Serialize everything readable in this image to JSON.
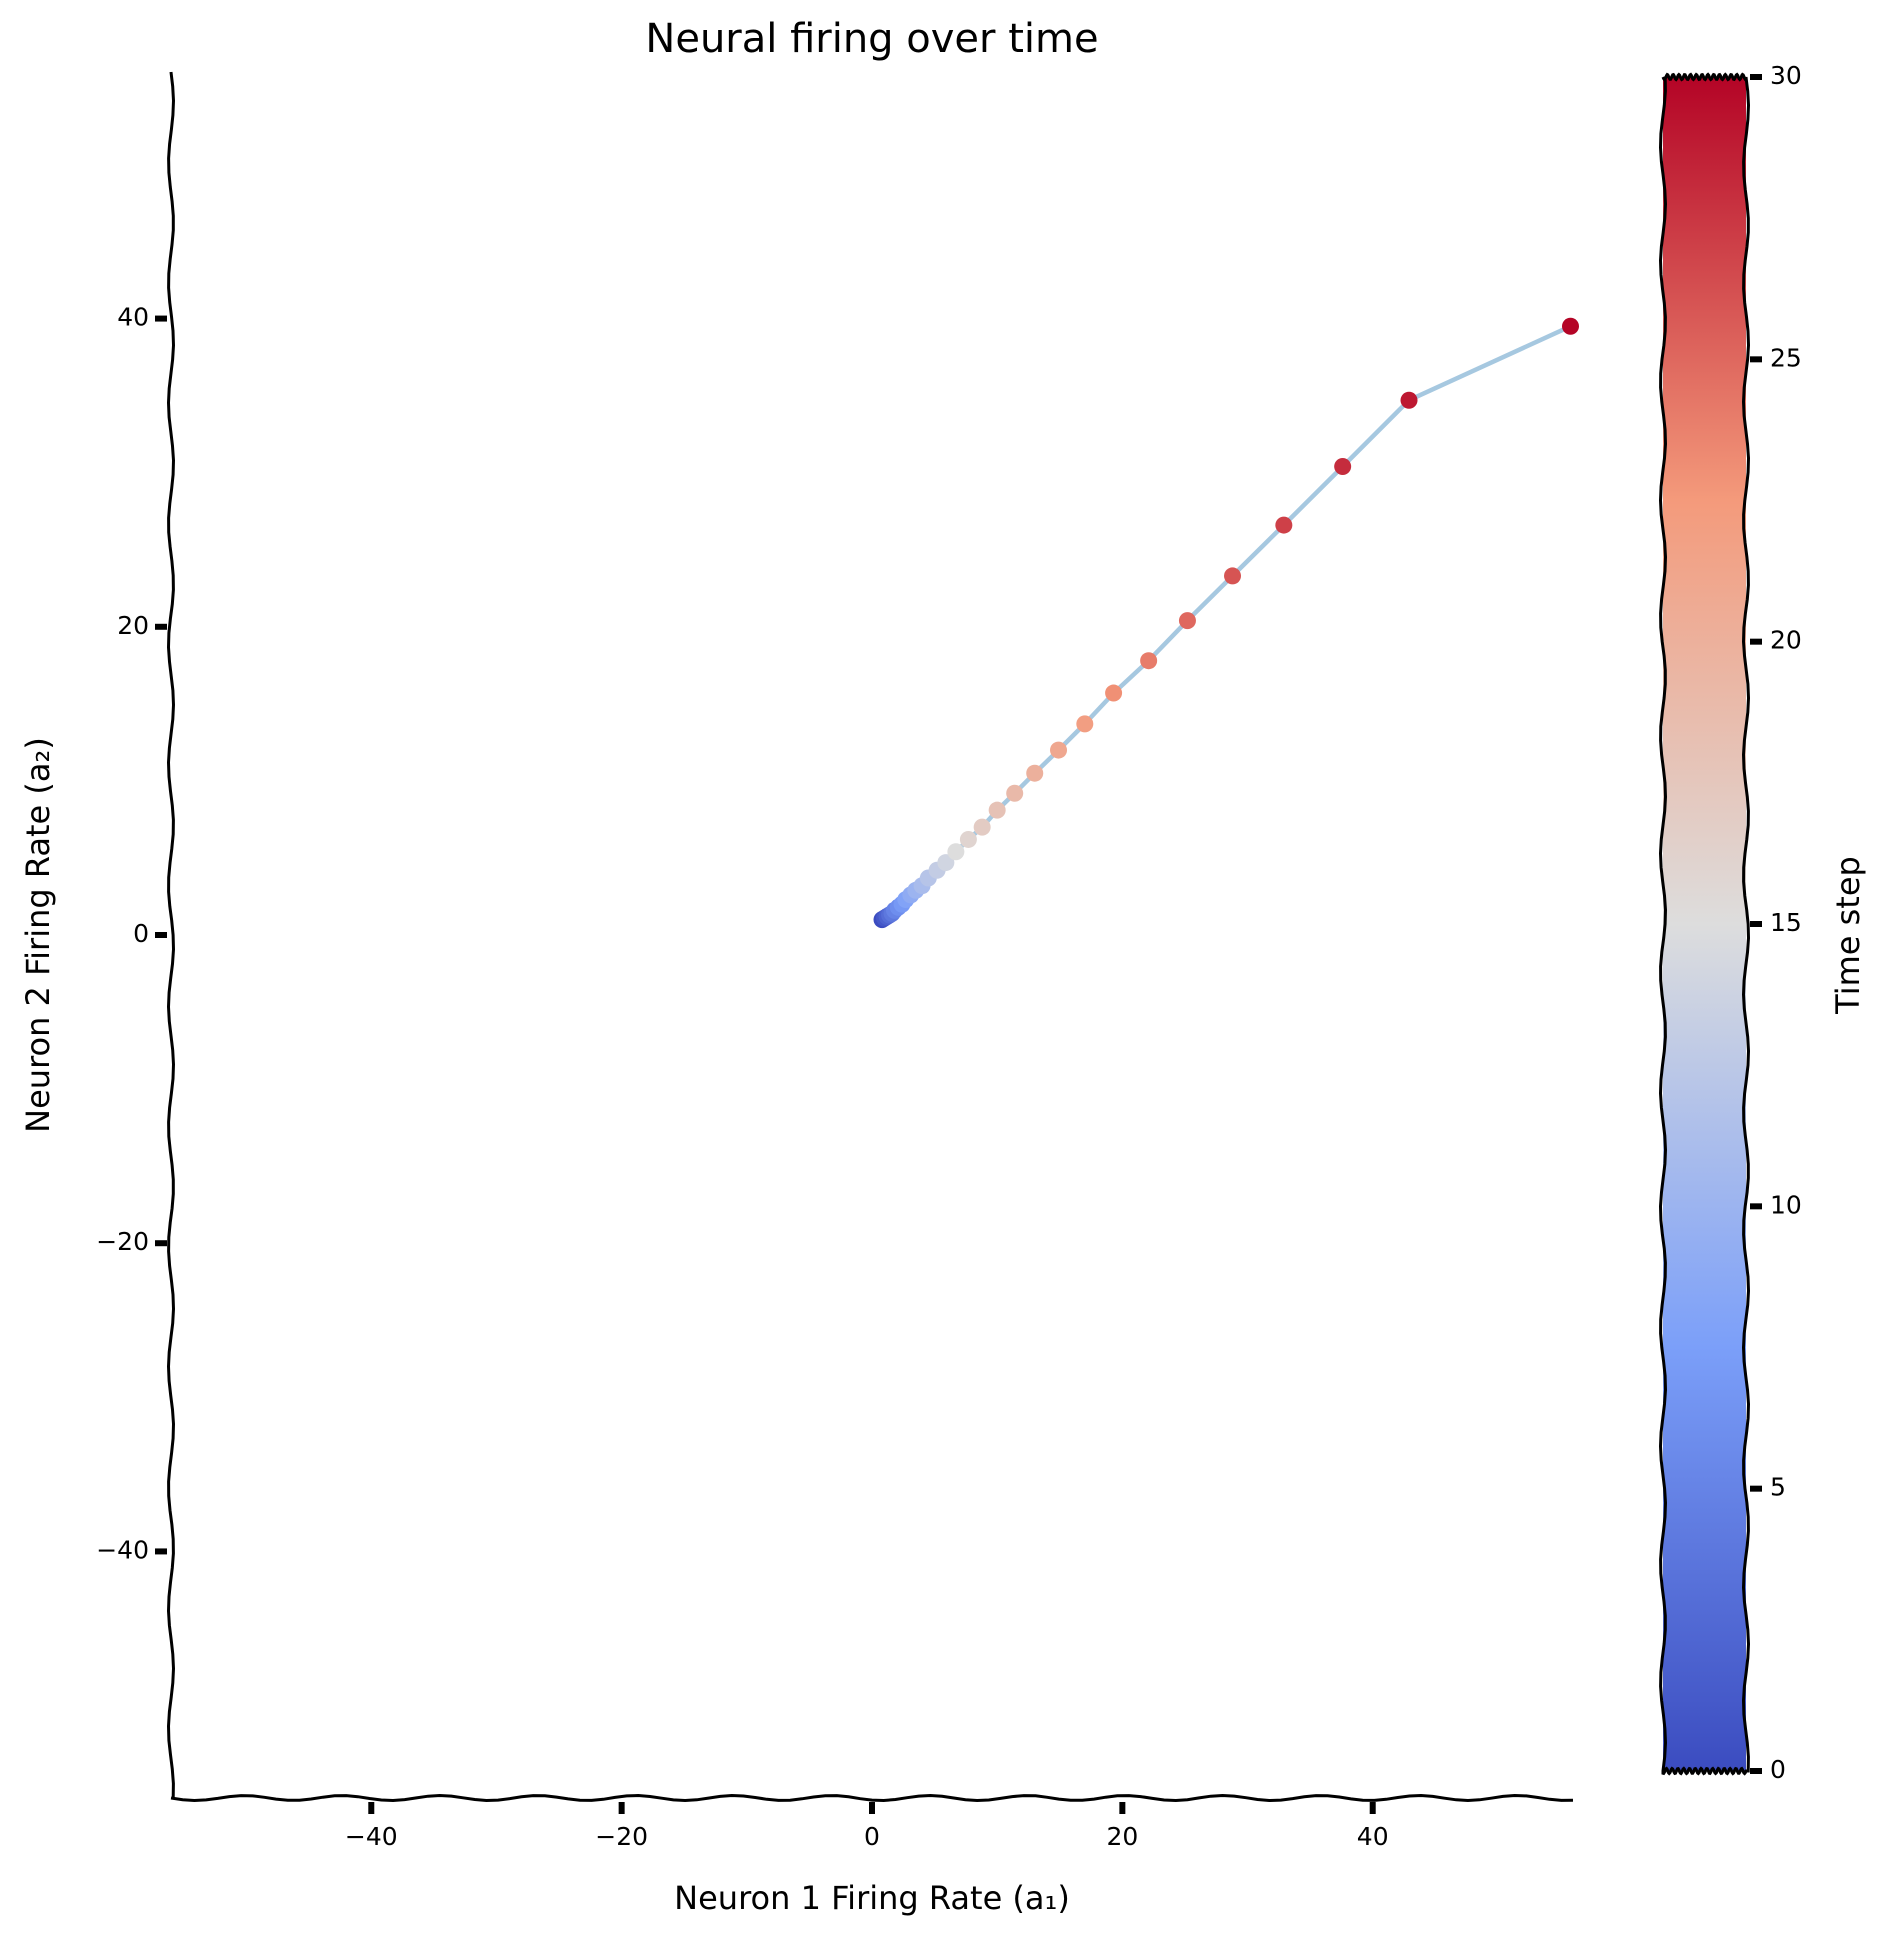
{
  "chart_data": {
    "type": "scatter",
    "title": "Neural firing over time",
    "xlabel": "Neuron 1 Firing Rate (a₁)",
    "ylabel": "Neuron 2 Firing Rate (a₂)",
    "x": [
      0.8,
      1.0,
      1.2,
      1.4,
      1.6,
      1.8,
      2.1,
      2.4,
      2.7,
      3.1,
      3.5,
      4.0,
      4.5,
      5.2,
      5.9,
      6.7,
      7.7,
      8.8,
      10.0,
      11.4,
      13.0,
      14.9,
      17.0,
      19.3,
      22.1,
      25.2,
      28.8,
      32.9,
      37.6,
      42.9,
      55.8
    ],
    "y": [
      1.0,
      1.1,
      1.2,
      1.3,
      1.4,
      1.6,
      1.8,
      2.0,
      2.3,
      2.6,
      2.9,
      3.2,
      3.7,
      4.2,
      4.7,
      5.4,
      6.2,
      7.0,
      8.1,
      9.2,
      10.5,
      12.0,
      13.7,
      15.7,
      17.8,
      20.4,
      23.3,
      26.6,
      30.4,
      34.7,
      39.5
    ],
    "c": [
      0,
      1,
      2,
      3,
      4,
      5,
      6,
      7,
      8,
      9,
      10,
      11,
      12,
      13,
      14,
      15,
      16,
      17,
      18,
      19,
      20,
      21,
      22,
      23,
      24,
      25,
      26,
      27,
      28,
      29,
      30
    ],
    "line_color": "#a6c8e0",
    "xlim": [
      -56,
      56
    ],
    "ylim": [
      -56,
      56
    ],
    "xticks": [
      {
        "value": -40,
        "label": "−40"
      },
      {
        "value": -20,
        "label": "−20"
      },
      0,
      20,
      40
    ],
    "yticks": [
      {
        "value": -40,
        "label": "−40"
      },
      {
        "value": -20,
        "label": "−20"
      },
      0,
      20,
      40
    ],
    "colorbar": {
      "label": "Time step",
      "lim": [
        0,
        30
      ],
      "ticks": [
        0,
        5,
        10,
        15,
        20,
        25,
        30
      ],
      "colormap": [
        "#3b4cc0",
        "#7b9ff9",
        "#dddddd",
        "#f49a7b",
        "#b40426"
      ]
    }
  }
}
